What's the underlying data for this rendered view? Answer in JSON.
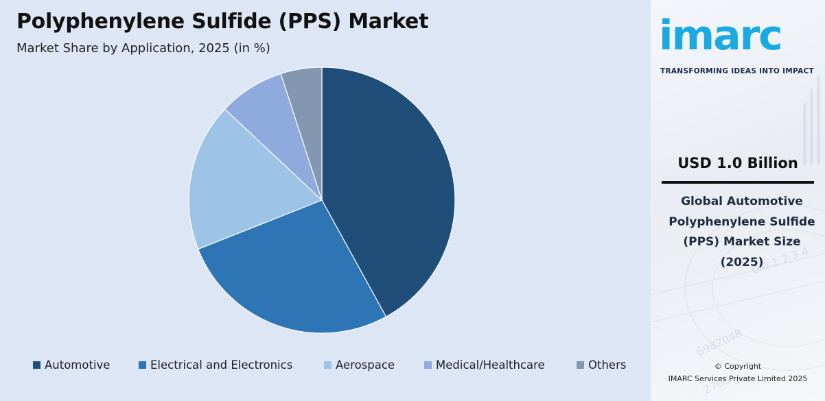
{
  "chart_data": {
    "type": "pie",
    "title": "Polyphenylene Sulfide (PPS) Market",
    "subtitle": "Market Share by Application, 2025 (in %)",
    "categories": [
      "Automotive",
      "Electrical and Electronics",
      "Aerospace",
      "Medical/Healthcare",
      "Others"
    ],
    "values": [
      42,
      27,
      18,
      8,
      5
    ],
    "colors": [
      "#1f4e79",
      "#2e75b6",
      "#9dc3e6",
      "#8faadc",
      "#8497b0"
    ],
    "legend_position": "bottom",
    "start_angle_deg": 0,
    "direction": "clockwise"
  },
  "side_panel": {
    "logo_text": "imarc",
    "logo_tagline": "TRANSFORMING IDEAS INTO IMPACT",
    "market_size": "USD 1.0 Billion",
    "market_description": "Global Automotive Polyphenylene Sulfide (PPS) Market Size (2025)",
    "copyright_line1": "© Copyright",
    "copyright_line2": "IMARC Services Private Limited 2025",
    "accent_color": "#1aa9e0"
  }
}
